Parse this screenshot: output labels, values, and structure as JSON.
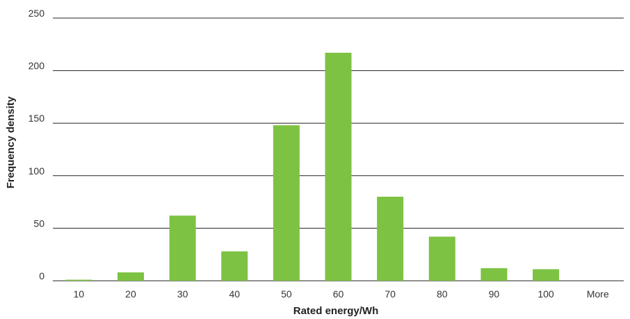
{
  "chart_data": {
    "type": "bar",
    "categories": [
      "10",
      "20",
      "30",
      "40",
      "50",
      "60",
      "70",
      "80",
      "90",
      "100",
      "More"
    ],
    "values": [
      1,
      8,
      62,
      28,
      148,
      217,
      80,
      42,
      12,
      11,
      0
    ],
    "xlabel": "Rated energy/Wh",
    "ylabel": "Frequency density",
    "ylim": [
      0,
      250
    ],
    "yticks": [
      0,
      50,
      100,
      150,
      200,
      250
    ],
    "grid": true,
    "bar_color": "#7dc242"
  }
}
